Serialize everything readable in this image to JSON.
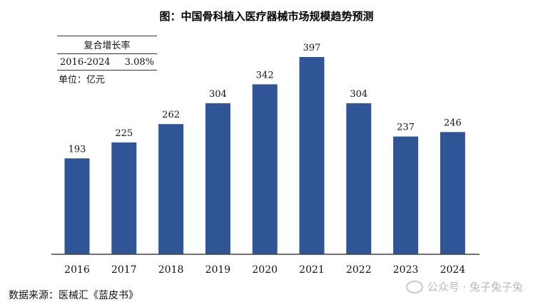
{
  "title": "图：中国骨科植入医疗器械市场规模趋势预测",
  "cagr": {
    "header": "复合增长率",
    "period": "2016-2024",
    "value": "3.08%"
  },
  "unit": "单位：亿元",
  "source": "数据来源：医械汇《蓝皮书》",
  "watermark": "公众号 · 兔子兔子兔",
  "colors": {
    "bar": "#2f5597",
    "axis": "#444444"
  },
  "chart_data": {
    "type": "bar",
    "title": "图：中国骨科植入医疗器械市场规模趋势预测",
    "categories": [
      "2016",
      "2017",
      "2018",
      "2019",
      "2020",
      "2021",
      "2022",
      "2023",
      "2024"
    ],
    "values": [
      193,
      225,
      262,
      304,
      342,
      397,
      304,
      237,
      246
    ],
    "ylabel": "单位：亿元",
    "ylim": [
      0,
      430
    ],
    "grid": false
  }
}
